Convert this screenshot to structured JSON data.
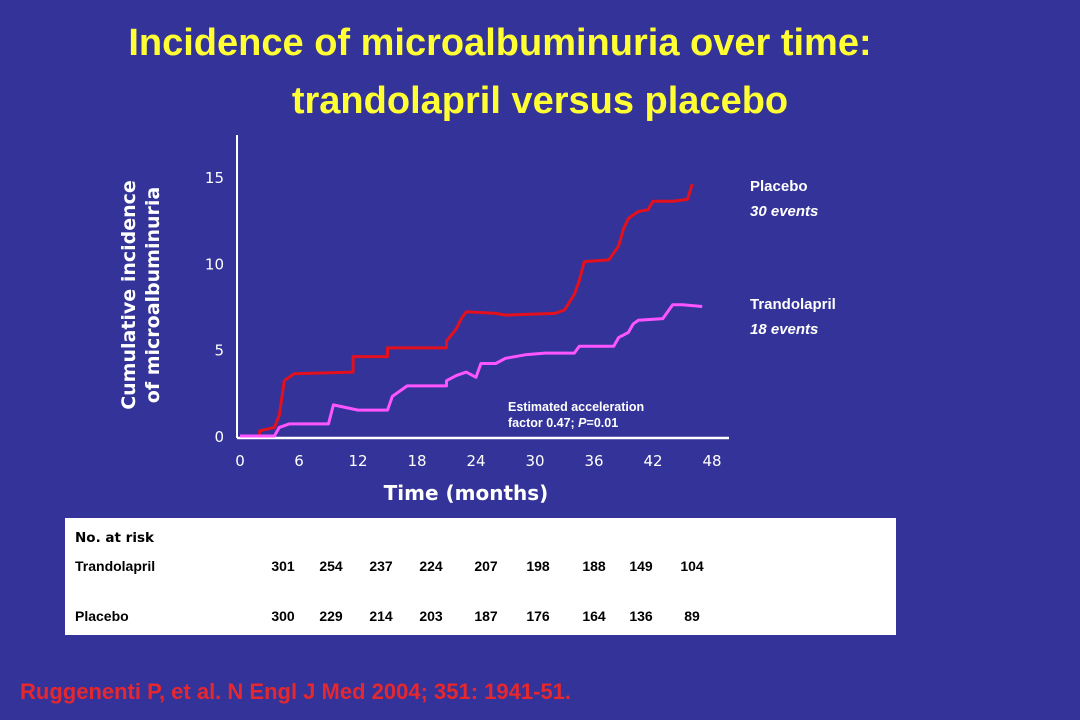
{
  "title_line1": "Incidence of microalbuminuria over time:",
  "title_line2": "trandolapril versus placebo",
  "chart_data": {
    "type": "line",
    "ylabel_line1": "Cumulative incidence",
    "ylabel_line2": "of microalbuminuria",
    "xlabel": "Time (months)",
    "xlim": [
      0,
      48
    ],
    "ylim": [
      0,
      15
    ],
    "xticks": [
      0,
      6,
      12,
      18,
      24,
      30,
      36,
      42,
      48
    ],
    "yticks": [
      0,
      5,
      10,
      15
    ],
    "grid": false,
    "series": [
      {
        "name": "Placebo",
        "events": "30 events",
        "color": "#E3101E",
        "points": [
          [
            0,
            0
          ],
          [
            2,
            0
          ],
          [
            2,
            0.3
          ],
          [
            3.5,
            0.5
          ],
          [
            4,
            1.2
          ],
          [
            4.5,
            3.2
          ],
          [
            5.5,
            3.6
          ],
          [
            11.5,
            3.7
          ],
          [
            11.5,
            4.6
          ],
          [
            15,
            4.6
          ],
          [
            15,
            5.1
          ],
          [
            21,
            5.1
          ],
          [
            21,
            5.5
          ],
          [
            22,
            6.2
          ],
          [
            22.5,
            6.8
          ],
          [
            23,
            7.2
          ],
          [
            26,
            7.1
          ],
          [
            27,
            7.0
          ],
          [
            32,
            7.1
          ],
          [
            33,
            7.3
          ],
          [
            34,
            8.2
          ],
          [
            34.5,
            9.0
          ],
          [
            35,
            10.1
          ],
          [
            37.5,
            10.2
          ],
          [
            38.5,
            11.0
          ],
          [
            39,
            12.0
          ],
          [
            39.5,
            12.6
          ],
          [
            40.5,
            13.0
          ],
          [
            41.5,
            13.1
          ],
          [
            42,
            13.6
          ],
          [
            44,
            13.6
          ],
          [
            45.5,
            13.7
          ],
          [
            46,
            14.6
          ]
        ]
      },
      {
        "name": "Trandolapril",
        "events": "18 events",
        "color": "#FF55FF",
        "points": [
          [
            0,
            0
          ],
          [
            3.5,
            0
          ],
          [
            4,
            0.5
          ],
          [
            5,
            0.7
          ],
          [
            9,
            0.7
          ],
          [
            9.5,
            1.8
          ],
          [
            12,
            1.5
          ],
          [
            15,
            1.5
          ],
          [
            15.5,
            2.3
          ],
          [
            17,
            2.9
          ],
          [
            21,
            2.9
          ],
          [
            21,
            3.2
          ],
          [
            22,
            3.5
          ],
          [
            23,
            3.7
          ],
          [
            24,
            3.4
          ],
          [
            24.5,
            4.2
          ],
          [
            26,
            4.2
          ],
          [
            27,
            4.5
          ],
          [
            29,
            4.7
          ],
          [
            31,
            4.8
          ],
          [
            34,
            4.8
          ],
          [
            34.5,
            5.2
          ],
          [
            38,
            5.2
          ],
          [
            38.5,
            5.7
          ],
          [
            39.5,
            6.0
          ],
          [
            40,
            6.5
          ],
          [
            40.5,
            6.7
          ],
          [
            43,
            6.8
          ],
          [
            44,
            7.6
          ],
          [
            45,
            7.6
          ],
          [
            47,
            7.5
          ]
        ]
      }
    ],
    "annotation_line1": "Estimated acceleration",
    "annotation_line2_prefix": "factor 0.47; ",
    "annotation_line2_p": "P",
    "annotation_line2_suffix": "=0.01"
  },
  "risk_table": {
    "heading": "No. at risk",
    "rows": [
      {
        "label": "Trandolapril",
        "values": [
          "301",
          "254",
          "237",
          "224",
          "207",
          "198",
          "188",
          "149",
          "104"
        ]
      },
      {
        "label": "Placebo",
        "values": [
          "300",
          "229",
          "214",
          "203",
          "187",
          "176",
          "164",
          "136",
          "89"
        ]
      }
    ]
  },
  "citation": "Ruggenenti P, et al. N Engl J Med 2004; 351: 1941-51."
}
